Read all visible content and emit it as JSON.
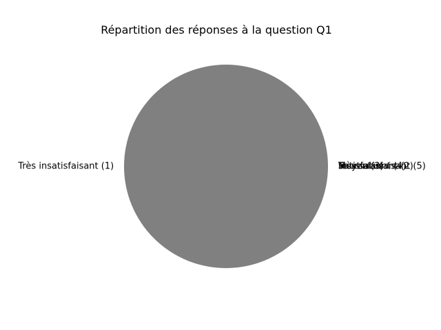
{
  "chart_data": {
    "type": "pie",
    "title": "Répartition des réponses à la question Q1",
    "slices": [
      {
        "label": "Très insatisfaisant (1)",
        "value": 1
      },
      {
        "label": "Insatisfaisant (2)",
        "value": 0
      },
      {
        "label": "Moyen (3)",
        "value": 0
      },
      {
        "label": "Très satisfaisant (5)",
        "value": 0
      },
      {
        "label": "Satisfaisant (4)",
        "value": 0
      }
    ],
    "colors": {
      "Très insatisfaisant (1)": "#808080"
    }
  }
}
